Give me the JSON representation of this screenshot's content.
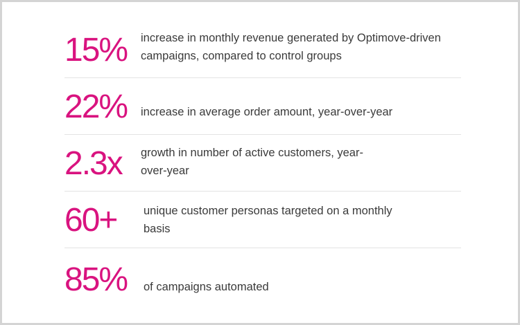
{
  "accent_color": "#d9137f",
  "text_color": "#3a3a3a",
  "stats": [
    {
      "value": "15%",
      "description": "increase in monthly revenue generated by Optimove-driven campaigns, compared to control groups"
    },
    {
      "value": "22%",
      "description": "increase in average order amount, year-over-year"
    },
    {
      "value": "2.3x",
      "description": "growth in number of active customers, year-over-year"
    },
    {
      "value": "60+",
      "description": "unique customer personas targeted on a monthly basis"
    },
    {
      "value": "85%",
      "description": "of campaigns automated"
    }
  ]
}
